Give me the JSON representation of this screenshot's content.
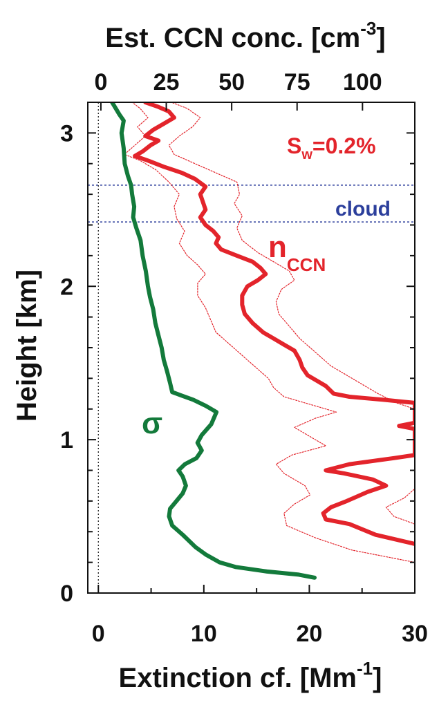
{
  "chart_data": {
    "type": "line",
    "top_axis": {
      "label": "Est. CCN conc. [cm",
      "label_sup": "-3",
      "label_end": "]",
      "ticks": [
        0,
        25,
        50,
        75,
        100
      ],
      "range": [
        -5,
        120
      ]
    },
    "x_axis": {
      "label": "Extinction cf. [Mm",
      "label_sup": "-1",
      "label_end": "]",
      "ticks": [
        0,
        10,
        20,
        30
      ],
      "range": [
        -1,
        30
      ]
    },
    "y_axis": {
      "label": "Height [km]",
      "ticks": [
        0,
        1,
        2,
        3
      ],
      "range": [
        0,
        3.2
      ]
    },
    "cloud_band": {
      "label": "cloud",
      "bottom": 2.42,
      "top": 2.66,
      "color": "#2c3f9c"
    },
    "annotations": {
      "sw_main": "S",
      "sw_sub": "w",
      "sw_rest": "=0.2%",
      "nccn_main": "n",
      "nccn_sub": "CCN",
      "sigma": "σ"
    },
    "colors": {
      "sigma": "#137a3b",
      "nccn": "#e3242b",
      "cloud": "#2c3f9c"
    },
    "series": [
      {
        "name": "σ",
        "axis": "bottom",
        "color": "#137a3b",
        "points": [
          [
            20.5,
            0.1
          ],
          [
            19,
            0.12
          ],
          [
            16,
            0.14
          ],
          [
            13,
            0.17
          ],
          [
            11.5,
            0.2
          ],
          [
            10.2,
            0.25
          ],
          [
            9.2,
            0.3
          ],
          [
            8,
            0.38
          ],
          [
            7,
            0.44
          ],
          [
            6.7,
            0.5
          ],
          [
            6.8,
            0.55
          ],
          [
            7.4,
            0.6
          ],
          [
            8,
            0.65
          ],
          [
            8.3,
            0.7
          ],
          [
            8,
            0.76
          ],
          [
            7.6,
            0.8
          ],
          [
            8.2,
            0.84
          ],
          [
            9.3,
            0.88
          ],
          [
            9.8,
            0.93
          ],
          [
            9.4,
            0.98
          ],
          [
            9.8,
            1.03
          ],
          [
            10.7,
            1.1
          ],
          [
            11.2,
            1.18
          ],
          [
            10.2,
            1.22
          ],
          [
            9,
            1.26
          ],
          [
            7.8,
            1.29
          ],
          [
            7,
            1.31
          ],
          [
            6.8,
            1.37
          ],
          [
            6.5,
            1.45
          ],
          [
            6.2,
            1.52
          ],
          [
            6,
            1.6
          ],
          [
            5.7,
            1.68
          ],
          [
            5.4,
            1.76
          ],
          [
            5.2,
            1.85
          ],
          [
            4.9,
            1.93
          ],
          [
            4.7,
            2.0
          ],
          [
            4.5,
            2.1
          ],
          [
            4.2,
            2.2
          ],
          [
            4,
            2.3
          ],
          [
            3.6,
            2.38
          ],
          [
            3.3,
            2.45
          ],
          [
            3.4,
            2.52
          ],
          [
            3.2,
            2.6
          ],
          [
            3.1,
            2.66
          ],
          [
            2.8,
            2.72
          ],
          [
            2.5,
            2.8
          ],
          [
            2.4,
            2.9
          ],
          [
            2.2,
            3.0
          ],
          [
            2.4,
            3.08
          ],
          [
            2.0,
            3.12
          ],
          [
            1.3,
            3.2
          ]
        ]
      },
      {
        "name": "n",
        "axis": "top",
        "color": "#e3242b",
        "points": [
          [
            120,
            0.32
          ],
          [
            105,
            0.38
          ],
          [
            95,
            0.45
          ],
          [
            86,
            0.48
          ],
          [
            85,
            0.52
          ],
          [
            88,
            0.56
          ],
          [
            94,
            0.6
          ],
          [
            102,
            0.66
          ],
          [
            109,
            0.7
          ],
          [
            104,
            0.74
          ],
          [
            93,
            0.78
          ],
          [
            86,
            0.8
          ],
          [
            95,
            0.84
          ],
          [
            112,
            0.88
          ],
          [
            120,
            0.9
          ],
          [
            120,
            1.07
          ],
          [
            114,
            1.09
          ],
          [
            120,
            1.11
          ],
          [
            120,
            1.24
          ],
          [
            108,
            1.26
          ],
          [
            95,
            1.28
          ],
          [
            89,
            1.3
          ],
          [
            86,
            1.35
          ],
          [
            83,
            1.38
          ],
          [
            79,
            1.42
          ],
          [
            77,
            1.47
          ],
          [
            76,
            1.52
          ],
          [
            74,
            1.58
          ],
          [
            70,
            1.62
          ],
          [
            66,
            1.66
          ],
          [
            62,
            1.7
          ],
          [
            58,
            1.76
          ],
          [
            55,
            1.82
          ],
          [
            54,
            1.88
          ],
          [
            54,
            1.94
          ],
          [
            56,
            2.0
          ],
          [
            60,
            2.04
          ],
          [
            63,
            2.08
          ],
          [
            61,
            2.12
          ],
          [
            58,
            2.16
          ],
          [
            52,
            2.2
          ],
          [
            46,
            2.24
          ],
          [
            44,
            2.28
          ],
          [
            45,
            2.32
          ],
          [
            43,
            2.36
          ],
          [
            40,
            2.4
          ],
          [
            38,
            2.45
          ],
          [
            40,
            2.5
          ],
          [
            39,
            2.55
          ],
          [
            38,
            2.6
          ],
          [
            40,
            2.65
          ],
          [
            36,
            2.7
          ],
          [
            31,
            2.74
          ],
          [
            24,
            2.78
          ],
          [
            18,
            2.82
          ],
          [
            13,
            2.85
          ],
          [
            16,
            2.88
          ],
          [
            19,
            2.92
          ],
          [
            22,
            2.95
          ],
          [
            17,
            2.98
          ],
          [
            20,
            3.02
          ],
          [
            24,
            3.06
          ],
          [
            28,
            3.1
          ],
          [
            26,
            3.14
          ],
          [
            22,
            3.17
          ],
          [
            17,
            3.2
          ]
        ]
      },
      {
        "name": "",
        "axis": "top",
        "color": "#e3242b",
        "dashed": true,
        "points": [
          [
            120,
            0.2
          ],
          [
            96,
            0.28
          ],
          [
            82,
            0.36
          ],
          [
            71,
            0.44
          ],
          [
            70,
            0.52
          ],
          [
            74,
            0.58
          ],
          [
            80,
            0.64
          ],
          [
            78,
            0.7
          ],
          [
            70,
            0.78
          ],
          [
            67,
            0.84
          ],
          [
            73,
            0.9
          ],
          [
            86,
            0.96
          ],
          [
            80,
            1.02
          ],
          [
            74,
            1.08
          ],
          [
            82,
            1.14
          ],
          [
            90,
            1.18
          ],
          [
            80,
            1.23
          ],
          [
            70,
            1.28
          ],
          [
            66,
            1.34
          ],
          [
            64,
            1.4
          ],
          [
            60,
            1.46
          ],
          [
            56,
            1.52
          ],
          [
            52,
            1.58
          ],
          [
            48,
            1.64
          ],
          [
            44,
            1.7
          ],
          [
            42,
            1.78
          ],
          [
            40,
            1.86
          ],
          [
            37,
            1.94
          ],
          [
            37,
            2.02
          ],
          [
            40,
            2.08
          ],
          [
            37,
            2.14
          ],
          [
            33,
            2.2
          ],
          [
            30,
            2.28
          ],
          [
            32,
            2.36
          ],
          [
            29,
            2.44
          ],
          [
            28,
            2.52
          ],
          [
            30,
            2.6
          ],
          [
            26,
            2.68
          ],
          [
            21,
            2.76
          ],
          [
            15,
            2.82
          ],
          [
            9,
            2.86
          ],
          [
            13,
            2.92
          ],
          [
            17,
            2.98
          ],
          [
            14,
            3.04
          ],
          [
            18,
            3.1
          ],
          [
            15,
            3.16
          ],
          [
            12,
            3.2
          ]
        ]
      },
      {
        "name": "",
        "axis": "top",
        "color": "#e3242b",
        "dashed": true,
        "points": [
          [
            120,
            0.45
          ],
          [
            112,
            0.5
          ],
          [
            109,
            0.56
          ],
          [
            116,
            0.62
          ],
          [
            120,
            0.68
          ],
          [
            120,
            1.2
          ],
          [
            113,
            1.24
          ],
          [
            106,
            1.3
          ],
          [
            100,
            1.36
          ],
          [
            94,
            1.42
          ],
          [
            88,
            1.48
          ],
          [
            84,
            1.54
          ],
          [
            80,
            1.6
          ],
          [
            76,
            1.66
          ],
          [
            72,
            1.74
          ],
          [
            68,
            1.82
          ],
          [
            67,
            1.9
          ],
          [
            69,
            1.98
          ],
          [
            74,
            2.04
          ],
          [
            72,
            2.1
          ],
          [
            66,
            2.16
          ],
          [
            60,
            2.22
          ],
          [
            54,
            2.3
          ],
          [
            52,
            2.38
          ],
          [
            54,
            2.46
          ],
          [
            51,
            2.54
          ],
          [
            53,
            2.6
          ],
          [
            52,
            2.68
          ],
          [
            44,
            2.74
          ],
          [
            36,
            2.8
          ],
          [
            28,
            2.86
          ],
          [
            26,
            2.92
          ],
          [
            30,
            2.98
          ],
          [
            35,
            3.04
          ],
          [
            38,
            3.1
          ],
          [
            33,
            3.16
          ],
          [
            27,
            3.2
          ]
        ]
      }
    ]
  }
}
